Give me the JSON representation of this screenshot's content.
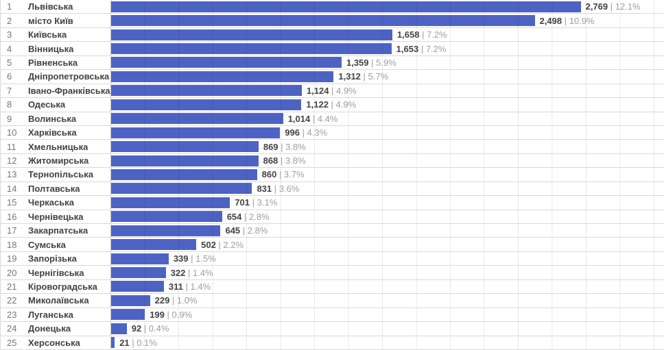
{
  "chart_data": {
    "type": "bar",
    "orientation": "horizontal",
    "title": "",
    "xlabel": "",
    "ylabel": "",
    "grid": true,
    "legend": false,
    "axis_range": [
      0,
      3260
    ],
    "gridline_step": 200,
    "label_separator": "|",
    "ranks": [
      1,
      2,
      3,
      4,
      5,
      6,
      7,
      8,
      9,
      10,
      11,
      12,
      13,
      14,
      15,
      16,
      17,
      18,
      19,
      20,
      21,
      22,
      23,
      24,
      25
    ],
    "categories": [
      "Львівська",
      "місто Київ",
      "Київська",
      "Вінницька",
      "Рівненська",
      "Дніпропетровська",
      "Івано-Франківська",
      "Одеська",
      "Волинська",
      "Харківська",
      "Хмельницька",
      "Житомирська",
      "Тернопільська",
      "Полтавська",
      "Черкаська",
      "Чернівецька",
      "Закарпатська",
      "Сумська",
      "Запорізька",
      "Чернігівська",
      "Кіровоградська",
      "Миколаївська",
      "Луганська",
      "Донецька",
      "Херсонська"
    ],
    "values": [
      2769,
      2498,
      1658,
      1653,
      1359,
      1312,
      1124,
      1122,
      1014,
      996,
      869,
      868,
      860,
      831,
      701,
      654,
      645,
      502,
      339,
      322,
      311,
      229,
      199,
      92,
      21
    ],
    "value_labels": [
      "2,769",
      "2,498",
      "1,658",
      "1,653",
      "1,359",
      "1,312",
      "1,124",
      "1,122",
      "1,014",
      "996",
      "869",
      "868",
      "860",
      "831",
      "701",
      "654",
      "645",
      "502",
      "339",
      "322",
      "311",
      "229",
      "199",
      "92",
      "21"
    ],
    "percent_labels": [
      "12.1%",
      "10.9%",
      "7.2%",
      "7.2%",
      "5.9%",
      "5.7%",
      "4.9%",
      "4.9%",
      "4.4%",
      "4.3%",
      "3.8%",
      "3.8%",
      "3.7%",
      "3.6%",
      "3.1%",
      "2.8%",
      "2.8%",
      "2.2%",
      "1.5%",
      "1.4%",
      "1.4%",
      "1.0%",
      "0.9%",
      "0.4%",
      "0.1%"
    ],
    "colors": {
      "bar": "#4d63c4",
      "row_separator": "#d9d9d9",
      "column_divider": "#c9c9c9",
      "rank_text": "#757575",
      "name_text": "#424242",
      "value_text": "#424242",
      "percent_text": "#9e9e9e",
      "background": "#ffffff"
    }
  }
}
